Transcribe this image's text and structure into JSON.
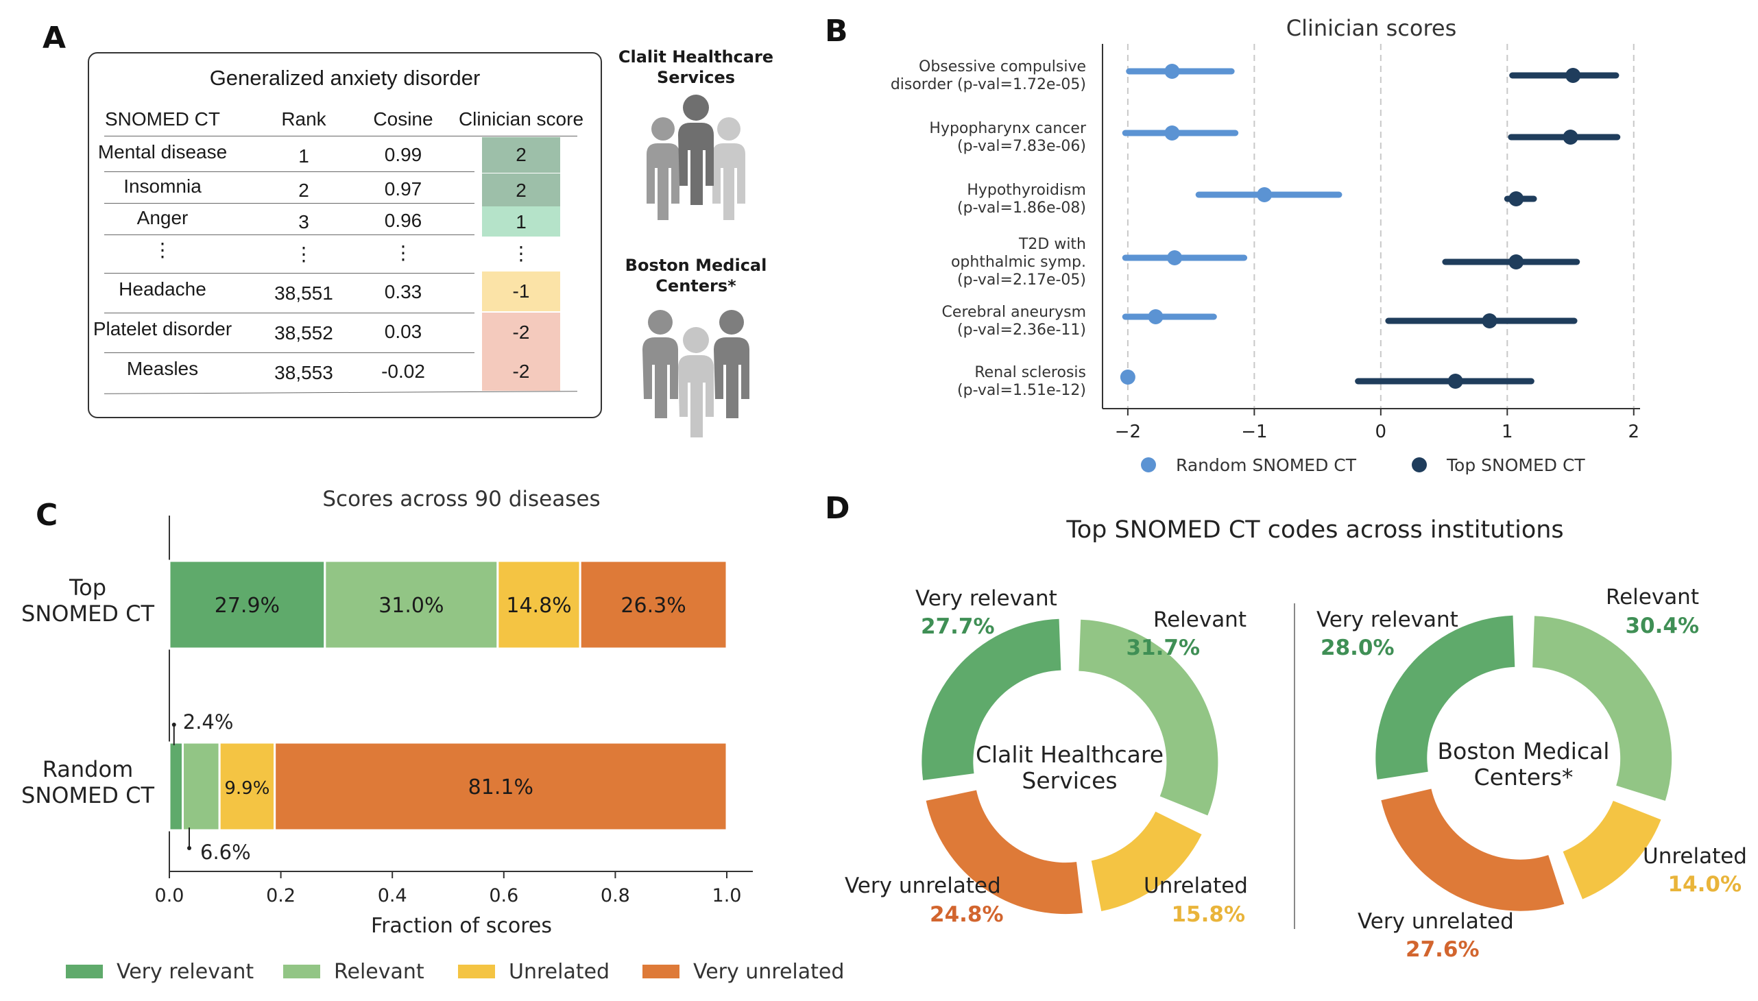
{
  "panels": {
    "a": "A",
    "b": "B",
    "c": "C",
    "d": "D"
  },
  "panel_a": {
    "title": "Generalized anxiety disorder",
    "headers": [
      "SNOMED CT",
      "Rank",
      "Cosine",
      "Clinician score"
    ],
    "rows": [
      {
        "term": "Mental disease",
        "rank": "1",
        "cosine": "0.99",
        "score": "2"
      },
      {
        "term": "Insomnia",
        "rank": "2",
        "cosine": "0.97",
        "score": "2"
      },
      {
        "term": "Anger",
        "rank": "3",
        "cosine": "0.96",
        "score": "1"
      },
      {
        "term": "⋮",
        "rank": "⋮",
        "cosine": "⋮",
        "score": "⋮"
      },
      {
        "term": "Headache",
        "rank": "38,551",
        "cosine": "0.33",
        "score": "-1"
      },
      {
        "term": "Platelet disorder",
        "rank": "38,552",
        "cosine": "0.03",
        "score": "-2"
      },
      {
        "term": "Measles",
        "rank": "38,553",
        "cosine": "-0.02",
        "score": "-2"
      }
    ],
    "score_colors": [
      "#9dbfa9",
      "#9dbfa9",
      "#b5e3c9",
      "#ffffff",
      "#fbe3a7",
      "#f4cabd",
      "#f4cabd"
    ],
    "institutions": [
      {
        "name_line1": "Clalit Healthcare",
        "name_line2": "Services",
        "icon": "people-group-icon"
      },
      {
        "name_line1": "Boston Medical",
        "name_line2": "Centers*",
        "icon": "people-group-icon"
      }
    ]
  },
  "chart_data": [
    {
      "type": "scatter",
      "title": "Clinician scores",
      "xlim": [
        -2.2,
        2.05
      ],
      "xticks": [
        -2,
        -1,
        0,
        1,
        2
      ],
      "xtick_labels": [
        "−2",
        "−1",
        "0",
        "1",
        "2"
      ],
      "grid": "vertical dashed",
      "legend_placement": "bottom",
      "categories": [
        {
          "line1": "Obsessive compulsive",
          "line2": "disorder (p-val=1.72e-05)"
        },
        {
          "line1": "Hypopharynx cancer",
          "line2": "(p-val=7.83e-06)"
        },
        {
          "line1": "Hypothyroidism",
          "line2": "(p-val=1.86e-08)"
        },
        {
          "line1": "T2D with",
          "line2": "ophthalmic symp.",
          "line3": "(p-val=2.17e-05)"
        },
        {
          "line1": "Cerebral aneurysm",
          "line2": "(p-val=2.36e-11)"
        },
        {
          "line1": "Renal sclerosis",
          "line2": "(p-val=1.51e-12)"
        }
      ],
      "series": [
        {
          "name": "Random SNOMED CT",
          "color": "#5b93d3",
          "mean": [
            -1.65,
            -1.65,
            -0.92,
            -1.63,
            -1.78,
            -2.0
          ],
          "low": [
            -1.99,
            -2.02,
            -1.44,
            -2.02,
            -2.02,
            -2.0
          ],
          "high": [
            -1.18,
            -1.15,
            -0.33,
            -1.08,
            -1.32,
            -2.0
          ]
        },
        {
          "name": "Top SNOMED CT",
          "color": "#1f3d5c",
          "mean": [
            1.52,
            1.5,
            1.07,
            1.07,
            0.86,
            0.59
          ],
          "low": [
            1.04,
            1.03,
            1.0,
            0.51,
            0.06,
            -0.18
          ],
          "high": [
            1.86,
            1.87,
            1.21,
            1.55,
            1.53,
            1.19
          ]
        }
      ]
    },
    {
      "type": "bar",
      "orientation": "horizontal stacked",
      "title": "Scores across 90 diseases",
      "xlabel": "Fraction of scores",
      "xlim": [
        0,
        1.0
      ],
      "xticks": [
        0,
        0.2,
        0.4,
        0.6,
        0.8,
        1.0
      ],
      "xtick_labels": [
        "0.0",
        "0.2",
        "0.4",
        "0.6",
        "0.8",
        "1.0"
      ],
      "legend_placement": "bottom",
      "categories": [
        {
          "line1": "Top",
          "line2": "SNOMED CT"
        },
        {
          "line1": "Random",
          "line2": "SNOMED CT"
        }
      ],
      "series": [
        {
          "name": "Very relevant",
          "color": "#5faa6b",
          "values": [
            0.279,
            0.024
          ],
          "labels": [
            "27.9%",
            "2.4%"
          ]
        },
        {
          "name": "Relevant",
          "color": "#92c585",
          "values": [
            0.31,
            0.066
          ],
          "labels": [
            "31.0%",
            "6.6%"
          ]
        },
        {
          "name": "Unrelated",
          "color": "#f4c443",
          "values": [
            0.148,
            0.099
          ],
          "labels": [
            "14.8%",
            "9.9%"
          ]
        },
        {
          "name": "Very unrelated",
          "color": "#de7a38",
          "values": [
            0.263,
            0.811
          ],
          "labels": [
            "26.3%",
            "81.1%"
          ]
        }
      ]
    },
    {
      "type": "pie",
      "style": "donut",
      "title": "Top SNOMED CT codes across institutions",
      "charts": [
        {
          "center_line1": "Clalit Healthcare",
          "center_line2": "Services",
          "slices": [
            {
              "name": "Very relevant",
              "value": 27.7,
              "label": "27.7%",
              "color": "#5faa6b",
              "text_color": "#3f8f55"
            },
            {
              "name": "Relevant",
              "value": 31.7,
              "label": "31.7%",
              "color": "#92c585",
              "text_color": "#3f8f55"
            },
            {
              "name": "Unrelated",
              "value": 15.8,
              "label": "15.8%",
              "color": "#f4c443",
              "text_color": "#e9b43a"
            },
            {
              "name": "Very unrelated",
              "value": 24.8,
              "label": "24.8%",
              "color": "#de7a38",
              "text_color": "#d2652e"
            }
          ]
        },
        {
          "center_line1": "Boston Medical",
          "center_line2": "Centers*",
          "slices": [
            {
              "name": "Very relevant",
              "value": 28.0,
              "label": "28.0%",
              "color": "#5faa6b",
              "text_color": "#3f8f55"
            },
            {
              "name": "Relevant",
              "value": 30.4,
              "label": "30.4%",
              "color": "#92c585",
              "text_color": "#3f8f55"
            },
            {
              "name": "Unrelated",
              "value": 14.0,
              "label": "14.0%",
              "color": "#f4c443",
              "text_color": "#e9b43a"
            },
            {
              "name": "Very unrelated",
              "value": 27.6,
              "label": "27.6%",
              "color": "#de7a38",
              "text_color": "#d2652e"
            }
          ]
        }
      ]
    }
  ]
}
